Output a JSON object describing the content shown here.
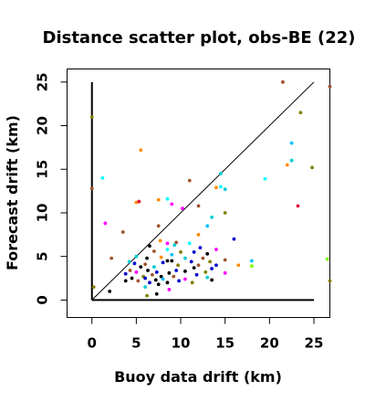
{
  "chart_data": {
    "type": "scatter",
    "title": "Distance scatter plot, obs-BE (22)",
    "xlabel": "Buoy data drift (km)",
    "ylabel": "Forecast drift (km)",
    "xlim": [
      -2.8,
      26.8
    ],
    "ylim": [
      -2.0,
      26.5
    ],
    "xticks": [
      0,
      5,
      10,
      15,
      20,
      25
    ],
    "yticks": [
      0,
      5,
      10,
      15,
      20,
      25
    ],
    "grid": false,
    "legend": "none",
    "reference_lines": [
      {
        "from": [
          0,
          0
        ],
        "to": [
          25,
          25
        ],
        "color": "#000000",
        "width": 1
      },
      {
        "from": [
          0,
          0
        ],
        "to": [
          0,
          25
        ],
        "color": "#000000",
        "width": 2
      },
      {
        "from": [
          0,
          0
        ],
        "to": [
          25,
          0
        ],
        "color": "#000000",
        "width": 2
      }
    ],
    "points": [
      {
        "x": 21.5,
        "y": 25.0,
        "color": "#a0522d"
      },
      {
        "x": 26.8,
        "y": 24.5,
        "color": "#a0522d"
      },
      {
        "x": 23.5,
        "y": 21.5,
        "color": "#808000"
      },
      {
        "x": 0.0,
        "y": 21.0,
        "color": "#808000"
      },
      {
        "x": 22.5,
        "y": 18.0,
        "color": "#00bfff"
      },
      {
        "x": 5.5,
        "y": 17.2,
        "color": "#ff8c00"
      },
      {
        "x": 22.5,
        "y": 16.0,
        "color": "#00ced1"
      },
      {
        "x": 22.0,
        "y": 15.5,
        "color": "#ff8c00"
      },
      {
        "x": 24.8,
        "y": 15.2,
        "color": "#808000"
      },
      {
        "x": 14.5,
        "y": 14.5,
        "color": "#00ced1"
      },
      {
        "x": 1.2,
        "y": 14.0,
        "color": "#00ffff"
      },
      {
        "x": 19.5,
        "y": 13.9,
        "color": "#00ffff"
      },
      {
        "x": 11.0,
        "y": 13.7,
        "color": "#a0522d"
      },
      {
        "x": 14.5,
        "y": 13.0,
        "color": "#00ffff"
      },
      {
        "x": 14.0,
        "y": 12.9,
        "color": "#ff8c00"
      },
      {
        "x": 15.0,
        "y": 12.7,
        "color": "#00ced1"
      },
      {
        "x": 0.0,
        "y": 12.8,
        "color": "#a0522d"
      },
      {
        "x": 7.5,
        "y": 11.5,
        "color": "#ff8c00"
      },
      {
        "x": 8.5,
        "y": 11.6,
        "color": "#00ffff"
      },
      {
        "x": 5.0,
        "y": 11.2,
        "color": "#ff8c00"
      },
      {
        "x": 5.3,
        "y": 11.3,
        "color": "#dc143c"
      },
      {
        "x": 9.0,
        "y": 11.0,
        "color": "#ff00ff"
      },
      {
        "x": 23.2,
        "y": 10.8,
        "color": "#dc143c"
      },
      {
        "x": 12.0,
        "y": 10.8,
        "color": "#a0522d"
      },
      {
        "x": 10.2,
        "y": 10.5,
        "color": "#ff00ff"
      },
      {
        "x": 15.0,
        "y": 10.0,
        "color": "#808000"
      },
      {
        "x": 13.5,
        "y": 9.5,
        "color": "#00ced1"
      },
      {
        "x": 1.5,
        "y": 8.8,
        "color": "#ff00ff"
      },
      {
        "x": 13.0,
        "y": 8.5,
        "color": "#00bfff"
      },
      {
        "x": 7.5,
        "y": 8.5,
        "color": "#a0522d"
      },
      {
        "x": 3.5,
        "y": 7.8,
        "color": "#a0522d"
      },
      {
        "x": 12.0,
        "y": 7.5,
        "color": "#ff8c00"
      },
      {
        "x": 16.0,
        "y": 7.0,
        "color": "#0000cd"
      },
      {
        "x": 7.7,
        "y": 6.8,
        "color": "#ff8c00"
      },
      {
        "x": 8.5,
        "y": 6.5,
        "color": "#ff00ff"
      },
      {
        "x": 9.5,
        "y": 6.6,
        "color": "#a0522d"
      },
      {
        "x": 11.0,
        "y": 6.5,
        "color": "#00ffff"
      },
      {
        "x": 9.3,
        "y": 6.3,
        "color": "#00ced1"
      },
      {
        "x": 6.5,
        "y": 6.2,
        "color": "#000000"
      },
      {
        "x": 12.2,
        "y": 6.0,
        "color": "#0000cd"
      },
      {
        "x": 8.5,
        "y": 5.8,
        "color": "#00ffff"
      },
      {
        "x": 14.0,
        "y": 5.8,
        "color": "#ff00ff"
      },
      {
        "x": 7.0,
        "y": 5.6,
        "color": "#a0522d"
      },
      {
        "x": 10.0,
        "y": 5.5,
        "color": "#808000"
      },
      {
        "x": 11.5,
        "y": 5.5,
        "color": "#0000cd"
      },
      {
        "x": 13.0,
        "y": 5.3,
        "color": "#000000"
      },
      {
        "x": 5.0,
        "y": 5.0,
        "color": "#00ced1"
      },
      {
        "x": 9.0,
        "y": 5.2,
        "color": "#00bfff"
      },
      {
        "x": 7.8,
        "y": 4.9,
        "color": "#ff8c00"
      },
      {
        "x": 2.2,
        "y": 4.8,
        "color": "#a0522d"
      },
      {
        "x": 6.2,
        "y": 4.8,
        "color": "#000000"
      },
      {
        "x": 10.5,
        "y": 4.8,
        "color": "#00ced1"
      },
      {
        "x": 12.5,
        "y": 4.8,
        "color": "#a0522d"
      },
      {
        "x": 26.5,
        "y": 4.7,
        "color": "#7cfc00"
      },
      {
        "x": 15.0,
        "y": 4.6,
        "color": "#a0522d"
      },
      {
        "x": 18.0,
        "y": 4.5,
        "color": "#00bfff"
      },
      {
        "x": 4.2,
        "y": 4.4,
        "color": "#00ced1"
      },
      {
        "x": 8.5,
        "y": 4.5,
        "color": "#000000"
      },
      {
        "x": 9.0,
        "y": 4.5,
        "color": "#000000"
      },
      {
        "x": 11.2,
        "y": 4.4,
        "color": "#0000cd"
      },
      {
        "x": 13.3,
        "y": 4.4,
        "color": "#808000"
      },
      {
        "x": 8.0,
        "y": 4.3,
        "color": "#0000cd"
      },
      {
        "x": 4.8,
        "y": 4.2,
        "color": "#0000cd"
      },
      {
        "x": 6.0,
        "y": 4.1,
        "color": "#a0522d"
      },
      {
        "x": 9.7,
        "y": 4.0,
        "color": "#808000"
      },
      {
        "x": 12.0,
        "y": 4.0,
        "color": "#a0522d"
      },
      {
        "x": 14.0,
        "y": 4.0,
        "color": "#0000cd"
      },
      {
        "x": 16.5,
        "y": 4.0,
        "color": "#ff8c00"
      },
      {
        "x": 18.0,
        "y": 3.9,
        "color": "#7cfc00"
      },
      {
        "x": 5.5,
        "y": 3.8,
        "color": "#000000"
      },
      {
        "x": 7.0,
        "y": 3.8,
        "color": "#00ced1"
      },
      {
        "x": 11.5,
        "y": 3.7,
        "color": "#000000"
      },
      {
        "x": 13.5,
        "y": 3.6,
        "color": "#0000cd"
      },
      {
        "x": 4.3,
        "y": 3.4,
        "color": "#a0522d"
      },
      {
        "x": 6.3,
        "y": 3.4,
        "color": "#000000"
      },
      {
        "x": 9.5,
        "y": 3.4,
        "color": "#0000cd"
      },
      {
        "x": 10.5,
        "y": 3.3,
        "color": "#000000"
      },
      {
        "x": 5.0,
        "y": 3.2,
        "color": "#ff00ff"
      },
      {
        "x": 7.3,
        "y": 3.2,
        "color": "#0000cd"
      },
      {
        "x": 12.8,
        "y": 3.2,
        "color": "#808000"
      },
      {
        "x": 15.0,
        "y": 3.1,
        "color": "#ff00ff"
      },
      {
        "x": 8.7,
        "y": 3.1,
        "color": "#000000"
      },
      {
        "x": 3.8,
        "y": 3.0,
        "color": "#0000cd"
      },
      {
        "x": 6.8,
        "y": 2.9,
        "color": "#a0522d"
      },
      {
        "x": 11.8,
        "y": 2.9,
        "color": "#0000cd"
      },
      {
        "x": 5.8,
        "y": 2.7,
        "color": "#808000"
      },
      {
        "x": 7.8,
        "y": 2.7,
        "color": "#000000"
      },
      {
        "x": 9.2,
        "y": 2.7,
        "color": "#a0522d"
      },
      {
        "x": 13.0,
        "y": 2.6,
        "color": "#00ced1"
      },
      {
        "x": 4.5,
        "y": 2.5,
        "color": "#000000"
      },
      {
        "x": 6.0,
        "y": 2.5,
        "color": "#0000cd"
      },
      {
        "x": 8.0,
        "y": 2.4,
        "color": "#00bfff"
      },
      {
        "x": 10.5,
        "y": 2.4,
        "color": "#ff00ff"
      },
      {
        "x": 7.2,
        "y": 2.3,
        "color": "#000000"
      },
      {
        "x": 13.5,
        "y": 2.3,
        "color": "#000000"
      },
      {
        "x": 3.8,
        "y": 2.2,
        "color": "#000000"
      },
      {
        "x": 5.2,
        "y": 2.2,
        "color": "#a0522d"
      },
      {
        "x": 9.8,
        "y": 2.2,
        "color": "#0000cd"
      },
      {
        "x": 6.5,
        "y": 2.0,
        "color": "#0000cd"
      },
      {
        "x": 8.5,
        "y": 2.0,
        "color": "#000000"
      },
      {
        "x": 11.3,
        "y": 2.0,
        "color": "#808000"
      },
      {
        "x": 26.8,
        "y": 2.2,
        "color": "#808000"
      },
      {
        "x": 7.5,
        "y": 1.8,
        "color": "#000000"
      },
      {
        "x": 0.2,
        "y": 1.5,
        "color": "#808000"
      },
      {
        "x": 6.0,
        "y": 1.5,
        "color": "#00ced1"
      },
      {
        "x": 8.7,
        "y": 1.2,
        "color": "#ff00ff"
      },
      {
        "x": 2.0,
        "y": 1.0,
        "color": "#000000"
      },
      {
        "x": 7.3,
        "y": 0.7,
        "color": "#000000"
      },
      {
        "x": 6.2,
        "y": 0.5,
        "color": "#808000"
      }
    ]
  }
}
